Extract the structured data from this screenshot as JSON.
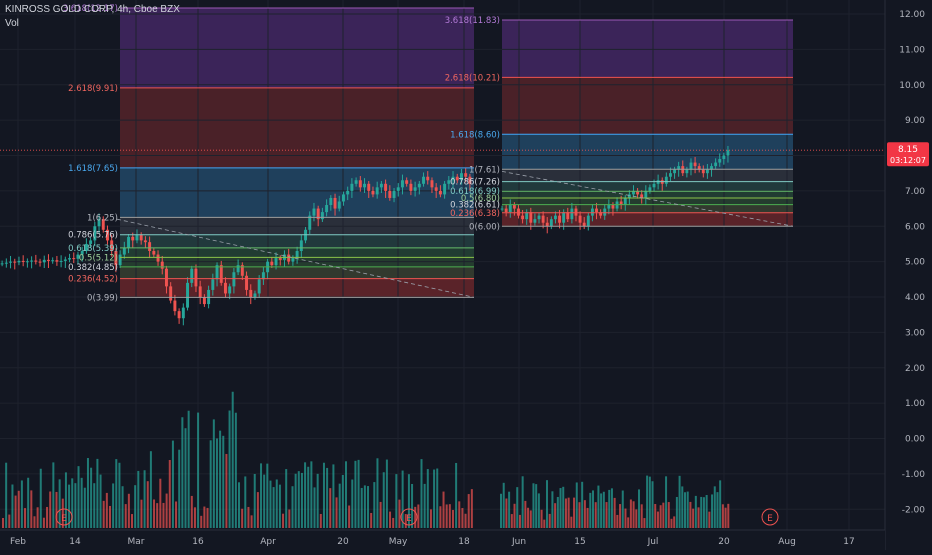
{
  "header": {
    "symbol_line": "KINROSS GOLD CORP, 4h, Cboe BZX",
    "volume_label": "Vol"
  },
  "price_badges": {
    "last_price": "8.15",
    "countdown": "03:12:07"
  },
  "colors": {
    "background": "#131722",
    "up": "#26a69a",
    "down": "#ef5350",
    "badge": "#f23645",
    "fib_bands": [
      "#9c2723",
      "#3b5b79",
      "#2a6b6b",
      "#2f6b3c",
      "#2e6b3f",
      "#4d7d4d",
      "#7a2a2a",
      "#6a2a2a"
    ],
    "purple_zone": "#5b2b84",
    "axis_text": "#b2b5be"
  },
  "chart_data": {
    "type": "candlestick",
    "title": "KINROSS GOLD CORP, 4h, Cboe BZX",
    "x_axis_ticks": [
      "Feb",
      "14",
      "Mar",
      "16",
      "Apr",
      "20",
      "May",
      "18",
      "Jun",
      "15",
      "Jul",
      "20",
      "Aug",
      "17"
    ],
    "y_axis_ticks": [
      "12.00",
      "11.00",
      "10.00",
      "9.00",
      "8.00",
      "7.00",
      "6.00",
      "5.00",
      "4.00",
      "3.00",
      "2.00",
      "1.00",
      "0.00",
      "-1.00",
      "-2.00"
    ],
    "ylim": [
      -2.2,
      12.3
    ],
    "fib_retracement_1": {
      "levels": [
        {
          "ratio": "3.618",
          "price": 12.17,
          "label": "3.618(12.17)"
        },
        {
          "ratio": "2.618",
          "price": 9.91,
          "label": "2.618(9.91)"
        },
        {
          "ratio": "1.618",
          "price": 7.65,
          "label": "1.618(7.65)"
        },
        {
          "ratio": "1",
          "price": 6.25,
          "label": "1(6.25)"
        },
        {
          "ratio": "0.786",
          "price": 5.76,
          "label": "0.786(5.76)"
        },
        {
          "ratio": "0.618",
          "price": 5.39,
          "label": "0.618(5.39)"
        },
        {
          "ratio": "0.5",
          "price": 5.12,
          "label": "0.5(5.12)"
        },
        {
          "ratio": "0.382",
          "price": 4.85,
          "label": "0.382(4.85)"
        },
        {
          "ratio": "0.236",
          "price": 4.52,
          "label": "0.236(4.52)"
        },
        {
          "ratio": "0",
          "price": 3.99,
          "label": "0(3.99)"
        }
      ]
    },
    "fib_retracement_2": {
      "levels": [
        {
          "ratio": "3.618",
          "price": 11.83,
          "label": "3.618(11.83)"
        },
        {
          "ratio": "2.618",
          "price": 10.21,
          "label": "2.618(10.21)"
        },
        {
          "ratio": "1.618",
          "price": 8.6,
          "label": "1.618(8.60)"
        },
        {
          "ratio": "1",
          "price": 7.61,
          "label": "1(7.61)"
        },
        {
          "ratio": "0.786",
          "price": 7.26,
          "label": "0.786(7.26)"
        },
        {
          "ratio": "0.618",
          "price": 6.99,
          "label": "0.618(6.99)"
        },
        {
          "ratio": "0.5",
          "price": 6.8,
          "label": "0.5(6.80)"
        },
        {
          "ratio": "0.382",
          "price": 6.61,
          "label": "0.382(6.61)"
        },
        {
          "ratio": "0.236",
          "price": 6.38,
          "label": "0.236(6.38)"
        },
        {
          "ratio": "0",
          "price": 6.0,
          "label": "0(6.00)"
        }
      ]
    },
    "last_price": 8.15,
    "trendlines": [
      {
        "from": [
          6.2,
          "Mar"
        ],
        "to": [
          3.99,
          "May 18"
        ],
        "style": "dashed"
      },
      {
        "from": [
          7.55,
          "Jun"
        ],
        "to": [
          6.0,
          "Aug"
        ],
        "style": "dashed"
      }
    ],
    "earnings_markers": [
      "E",
      "E",
      "E"
    ],
    "series": [
      {
        "name": "Price",
        "close": [
          4.95,
          4.97,
          5.0,
          4.98,
          5.02,
          4.99,
          5.01,
          5.03,
          5.0,
          4.98,
          5.05,
          5.02,
          5.04,
          5.0,
          5.02,
          5.06,
          5.1,
          5.08,
          5.2,
          5.3,
          5.5,
          5.6,
          6.0,
          6.2,
          5.9,
          5.6,
          5.3,
          4.9,
          5.2,
          5.4,
          5.7,
          5.6,
          5.75,
          5.6,
          5.55,
          5.3,
          5.2,
          5.0,
          4.8,
          4.3,
          3.9,
          3.6,
          3.4,
          3.7,
          4.4,
          4.8,
          4.3,
          4.0,
          3.8,
          4.2,
          4.5,
          4.9,
          4.4,
          4.1,
          4.3,
          4.7,
          4.9,
          4.6,
          4.2,
          4.0,
          4.1,
          4.5,
          4.7,
          5.0,
          4.9,
          5.1,
          5.05,
          5.2,
          5.0,
          5.1,
          5.3,
          5.6,
          5.9,
          6.3,
          6.5,
          6.2,
          6.4,
          6.6,
          6.8,
          6.5,
          6.7,
          6.9,
          7.0,
          7.2,
          7.3,
          7.1,
          7.2,
          7.0,
          6.9,
          7.1,
          7.2,
          7.0,
          6.8,
          7.0,
          7.1,
          7.3,
          7.2,
          7.0,
          7.1,
          7.2,
          7.4,
          7.3,
          7.1,
          7.0,
          6.9,
          7.2,
          7.3,
          7.4,
          7.3,
          7.5,
          7.4,
          7.2
        ],
        "close_2": [
          6.5,
          6.4,
          6.6,
          6.5,
          6.3,
          6.2,
          6.4,
          6.1,
          6.2,
          6.3,
          6.1,
          6.0,
          6.2,
          6.3,
          6.1,
          6.4,
          6.2,
          6.5,
          6.3,
          6.1,
          6.0,
          6.3,
          6.5,
          6.4,
          6.3,
          6.5,
          6.6,
          6.5,
          6.7,
          6.6,
          6.8,
          6.9,
          7.0,
          6.9,
          6.8,
          7.0,
          7.1,
          7.2,
          7.3,
          7.2,
          7.4,
          7.5,
          7.6,
          7.7,
          7.5,
          7.6,
          7.8,
          7.7,
          7.6,
          7.5,
          7.6,
          7.7,
          7.8,
          7.9,
          8.0,
          8.15
        ]
      }
    ]
  }
}
